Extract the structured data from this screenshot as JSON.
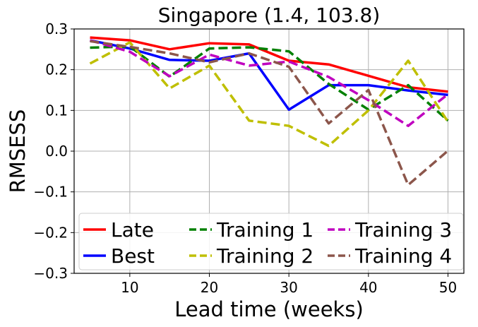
{
  "chart_data": {
    "type": "line",
    "title": "Singapore (1.4, 103.8)",
    "xlabel": "Lead time (weeks)",
    "ylabel": "RMSESS",
    "xlim": [
      3,
      52
    ],
    "ylim": [
      -0.3,
      0.3
    ],
    "xticks": [
      10,
      20,
      30,
      40,
      50
    ],
    "xtick_labels": [
      "10",
      "20",
      "30",
      "40",
      "50"
    ],
    "yticks": [
      -0.3,
      -0.2,
      -0.1,
      0.0,
      0.1,
      0.2,
      0.3
    ],
    "ytick_labels": [
      "−0.3",
      "−0.2",
      "−0.1",
      "0.0",
      "0.1",
      "0.2",
      "0.3"
    ],
    "grid": true,
    "legend_position": "lower-center",
    "x": [
      5,
      10,
      15,
      20,
      25,
      30,
      35,
      40,
      45,
      50
    ],
    "series": [
      {
        "name": "Late",
        "color": "#ff0000",
        "dash": "solid",
        "values": [
          0.279,
          0.272,
          0.25,
          0.265,
          0.262,
          0.222,
          0.213,
          0.185,
          0.157,
          0.146
        ]
      },
      {
        "name": "Best",
        "color": "#0000ff",
        "dash": "solid",
        "values": [
          0.272,
          0.252,
          0.224,
          0.222,
          0.24,
          0.102,
          0.162,
          0.162,
          0.149,
          0.138
        ]
      },
      {
        "name": "Training 1",
        "color": "#008000",
        "dash": "dashed",
        "values": [
          0.254,
          0.257,
          0.183,
          0.252,
          0.255,
          0.245,
          0.165,
          0.102,
          0.162,
          0.075
        ]
      },
      {
        "name": "Training 2",
        "color": "#bfbf00",
        "dash": "dashed",
        "values": [
          0.215,
          0.267,
          0.154,
          0.21,
          0.075,
          0.062,
          0.013,
          0.1,
          0.222,
          0.072
        ]
      },
      {
        "name": "Training 3",
        "color": "#bf00bf",
        "dash": "dashed",
        "values": [
          0.272,
          0.244,
          0.184,
          0.237,
          0.21,
          0.22,
          0.182,
          0.125,
          0.062,
          0.14
        ]
      },
      {
        "name": "Training 4",
        "color": "#8c564b",
        "dash": "dashed",
        "values": [
          0.27,
          0.256,
          0.24,
          0.218,
          0.24,
          0.207,
          0.068,
          0.15,
          -0.083,
          0.001
        ]
      }
    ]
  }
}
